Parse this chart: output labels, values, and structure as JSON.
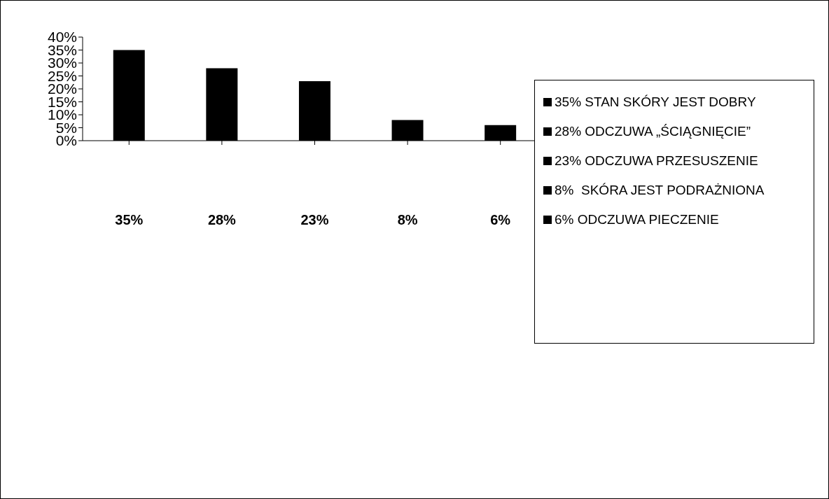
{
  "chart_data": {
    "type": "bar",
    "categories": [
      "35%",
      "28%",
      "23%",
      "8%",
      "6%"
    ],
    "stacked": true,
    "series": [
      {
        "name": "35% STAN SKÓRY JEST DOBRY",
        "color": "#000000",
        "values": [
          35,
          null,
          null,
          null,
          null
        ]
      },
      {
        "name": "28% ODCZUWA „ŚCIĄGNIĘCIE”",
        "color": "#000000",
        "values": [
          null,
          28,
          null,
          null,
          null
        ]
      },
      {
        "name": "23% ODCZUWA PRZESUSZENIE",
        "color": "#000000",
        "values": [
          null,
          null,
          23,
          null,
          null
        ]
      },
      {
        "name": "8%  SKÓRA JEST PODRAŻNIONA",
        "color": "#000000",
        "values": [
          null,
          null,
          null,
          8,
          null
        ]
      },
      {
        "name": "6% ODCZUWA PIECZENIE",
        "color": "#000000",
        "values": [
          null,
          null,
          null,
          null,
          6
        ]
      }
    ],
    "ylim": [
      0,
      40
    ],
    "yticks": [
      {
        "value": 0,
        "label": "0%"
      },
      {
        "value": 5,
        "label": "5%"
      },
      {
        "value": 10,
        "label": "10%"
      },
      {
        "value": 15,
        "label": "15%"
      },
      {
        "value": 20,
        "label": "20%"
      },
      {
        "value": 25,
        "label": "25%"
      },
      {
        "value": 30,
        "label": "30%"
      },
      {
        "value": 35,
        "label": "35%"
      },
      {
        "value": 40,
        "label": "40%"
      }
    ],
    "grid": false,
    "legend": "right"
  }
}
